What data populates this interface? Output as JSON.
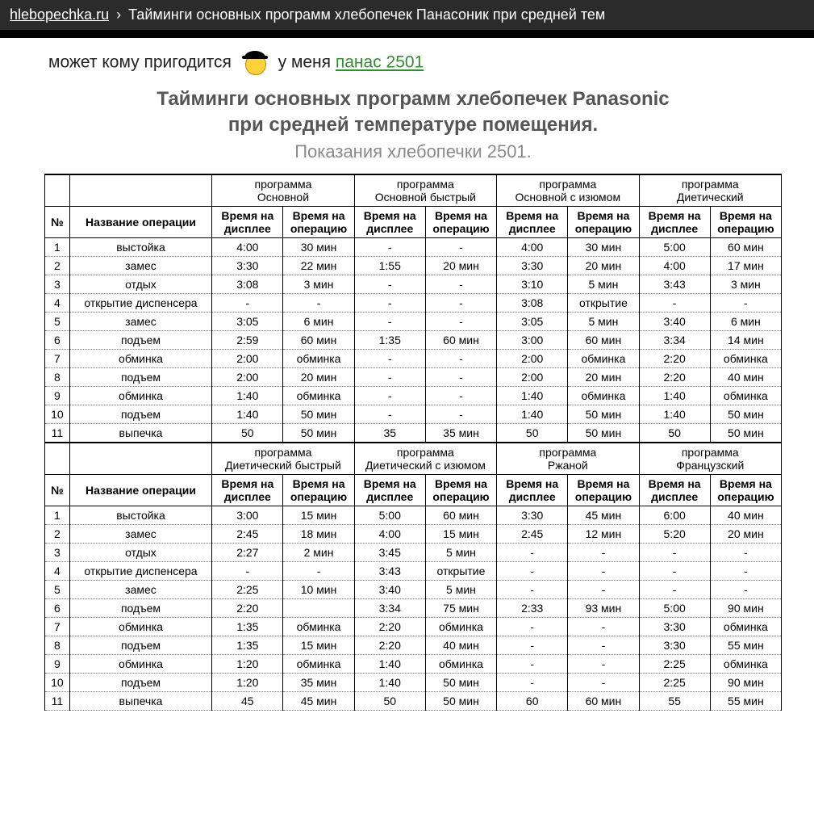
{
  "topbar": {
    "site": "hlebopechka.ru",
    "sep": "›",
    "crumb": "Тайминги основных программ хлебопечек Панасоник при средней тем"
  },
  "post": {
    "text_before": "может кому пригодится",
    "text_after": "у меня",
    "link_text": "панас 2501"
  },
  "sheet": {
    "title1": "Тайминги основных программ хлебопечек Panasonic",
    "title2": "при средней температуре помещения.",
    "subtitle": "Показания хлебопечки 2501.",
    "col_num": "№",
    "col_op": "Название операции",
    "sub_disp": "Время на дисплее",
    "sub_oper": "Время на операцию",
    "prog_label": "программа",
    "blocks": [
      {
        "programs": [
          "Основной",
          "Основной быстрый",
          "Основной с изюмом",
          "Диетический"
        ],
        "rows": [
          {
            "n": "1",
            "op": "выстойка",
            "c": [
              [
                "4:00",
                "30 мин"
              ],
              [
                "-",
                "-"
              ],
              [
                "4:00",
                "30 мин"
              ],
              [
                "5:00",
                "60 мин"
              ]
            ]
          },
          {
            "n": "2",
            "op": "замес",
            "c": [
              [
                "3:30",
                "22 мин"
              ],
              [
                "1:55",
                "20 мин"
              ],
              [
                "3:30",
                "20 мин"
              ],
              [
                "4:00",
                "17 мин"
              ]
            ]
          },
          {
            "n": "3",
            "op": "отдых",
            "c": [
              [
                "3:08",
                "3 мин"
              ],
              [
                "-",
                "-"
              ],
              [
                "3:10",
                "5 мин"
              ],
              [
                "3:43",
                "3 мин"
              ]
            ]
          },
          {
            "n": "4",
            "op": "открытие диспенсера",
            "c": [
              [
                "-",
                "-"
              ],
              [
                "-",
                "-"
              ],
              [
                "3:08",
                "открытие"
              ],
              [
                "-",
                "-"
              ]
            ]
          },
          {
            "n": "5",
            "op": "замес",
            "c": [
              [
                "3:05",
                "6 мин"
              ],
              [
                "-",
                "-"
              ],
              [
                "3:05",
                "5 мин"
              ],
              [
                "3:40",
                "6 мин"
              ]
            ]
          },
          {
            "n": "6",
            "op": "подъем",
            "c": [
              [
                "2:59",
                "60 мин"
              ],
              [
                "1:35",
                "60 мин"
              ],
              [
                "3:00",
                "60 мин"
              ],
              [
                "3:34",
                "14 мин"
              ]
            ]
          },
          {
            "n": "7",
            "op": "обминка",
            "c": [
              [
                "2:00",
                "обминка"
              ],
              [
                "-",
                "-"
              ],
              [
                "2:00",
                "обминка"
              ],
              [
                "2:20",
                "обминка"
              ]
            ]
          },
          {
            "n": "8",
            "op": "подъем",
            "c": [
              [
                "2:00",
                "20 мин"
              ],
              [
                "-",
                "-"
              ],
              [
                "2:00",
                "20 мин"
              ],
              [
                "2:20",
                "40 мин"
              ]
            ]
          },
          {
            "n": "9",
            "op": "обминка",
            "c": [
              [
                "1:40",
                "обминка"
              ],
              [
                "-",
                "-"
              ],
              [
                "1:40",
                "обминка"
              ],
              [
                "1:40",
                "обминка"
              ]
            ]
          },
          {
            "n": "10",
            "op": "подъем",
            "c": [
              [
                "1:40",
                "50 мин"
              ],
              [
                "-",
                "-"
              ],
              [
                "1:40",
                "50 мин"
              ],
              [
                "1:40",
                "50 мин"
              ]
            ]
          },
          {
            "n": "11",
            "op": "выпечка",
            "c": [
              [
                "50",
                "50 мин"
              ],
              [
                "35",
                "35 мин"
              ],
              [
                "50",
                "50 мин"
              ],
              [
                "50",
                "50 мин"
              ]
            ]
          }
        ]
      },
      {
        "programs": [
          "Диетический быстрый",
          "Диетический с изюмом",
          "Ржаной",
          "Французский"
        ],
        "rows": [
          {
            "n": "1",
            "op": "выстойка",
            "c": [
              [
                "3:00",
                "15 мин"
              ],
              [
                "5:00",
                "60 мин"
              ],
              [
                "3:30",
                "45 мин"
              ],
              [
                "6:00",
                "40 мин"
              ]
            ]
          },
          {
            "n": "2",
            "op": "замес",
            "c": [
              [
                "2:45",
                "18 мин"
              ],
              [
                "4:00",
                "15 мин"
              ],
              [
                "2:45",
                "12 мин"
              ],
              [
                "5:20",
                "20 мин"
              ]
            ]
          },
          {
            "n": "3",
            "op": "отдых",
            "c": [
              [
                "2:27",
                "2 мин"
              ],
              [
                "3:45",
                "5 мин"
              ],
              [
                "-",
                "-"
              ],
              [
                "-",
                "-"
              ]
            ]
          },
          {
            "n": "4",
            "op": "открытие диспенсера",
            "c": [
              [
                "-",
                "-"
              ],
              [
                "3:43",
                "открытие"
              ],
              [
                "-",
                "-"
              ],
              [
                "-",
                "-"
              ]
            ]
          },
          {
            "n": "5",
            "op": "замес",
            "c": [
              [
                "2:25",
                "10 мин"
              ],
              [
                "3:40",
                "5 мин"
              ],
              [
                "-",
                "-"
              ],
              [
                "-",
                "-"
              ]
            ]
          },
          {
            "n": "6",
            "op": "подъем",
            "c": [
              [
                "2:20",
                ""
              ],
              [
                "3:34",
                "75 мин"
              ],
              [
                "2:33",
                "93 мин"
              ],
              [
                "5:00",
                "90 мин"
              ]
            ]
          },
          {
            "n": "7",
            "op": "обминка",
            "c": [
              [
                "1:35",
                "обминка"
              ],
              [
                "2:20",
                "обминка"
              ],
              [
                "-",
                "-"
              ],
              [
                "3:30",
                "обминка"
              ]
            ]
          },
          {
            "n": "8",
            "op": "подъем",
            "c": [
              [
                "1:35",
                "15 мин"
              ],
              [
                "2:20",
                "40 мин"
              ],
              [
                "-",
                "-"
              ],
              [
                "3:30",
                "55 мин"
              ]
            ]
          },
          {
            "n": "9",
            "op": "обминка",
            "c": [
              [
                "1:20",
                "обминка"
              ],
              [
                "1:40",
                "обминка"
              ],
              [
                "-",
                "-"
              ],
              [
                "2:25",
                "обминка"
              ]
            ]
          },
          {
            "n": "10",
            "op": "подъем",
            "c": [
              [
                "1:20",
                "35 мин"
              ],
              [
                "1:40",
                "50 мин"
              ],
              [
                "-",
                "-"
              ],
              [
                "2:25",
                "90 мин"
              ]
            ]
          },
          {
            "n": "11",
            "op": "выпечка",
            "c": [
              [
                "45",
                "45 мин"
              ],
              [
                "50",
                "50 мин"
              ],
              [
                "60",
                "60 мин"
              ],
              [
                "55",
                "55 мин"
              ]
            ]
          }
        ]
      }
    ]
  },
  "style": {
    "topbar_bg": "#2b2b2b",
    "link_color": "#2f8f2f",
    "title_color": "#555555",
    "subtitle_color": "#8a8a8a",
    "border_color": "#000000",
    "dotted_color": "#777777",
    "font": "Arial"
  }
}
